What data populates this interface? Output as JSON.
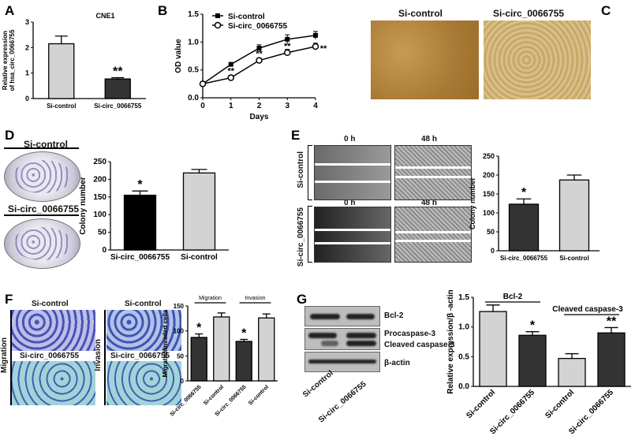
{
  "panels": {
    "A": "A",
    "B": "B",
    "C": "C",
    "D": "D",
    "E": "E",
    "F": "F",
    "G": "G"
  },
  "panel_c": {
    "left_title": "Si-control",
    "right_title": "Si-circ_0066755"
  },
  "panel_d": {
    "top_label": "Si-control",
    "bottom_label": "Si-circ_0066755"
  },
  "panel_e": {
    "time_0": "0 h",
    "time_48": "48 h",
    "row1": "Si-control",
    "row2": "Si-circ_0066755"
  },
  "panel_f": {
    "top_left": "Si-control",
    "top_right": "Si-control",
    "bottom_left": "Si-circ_0066755",
    "bottom_right": "Si-circ_0066755",
    "row_migration": "Migration",
    "row_invasion": "Invasion"
  },
  "panel_g": {
    "bands": [
      "Bcl-2",
      "Procaspase-3",
      "Cleaved caspase-3",
      "β-actin"
    ],
    "lanes": [
      "Si-control",
      "Si-circ_0066755"
    ]
  },
  "colors": {
    "light": "#d3d3d3",
    "dark": "#333333",
    "black": "#000000"
  },
  "chart_data": [
    {
      "id": "A",
      "type": "bar",
      "title": "CNE1",
      "ylabel": "Relative expression of hsa_circ_0066755",
      "ylim": [
        0,
        3
      ],
      "yticks": [
        "0",
        "1",
        "2",
        "3"
      ],
      "categories": [
        "Si-control",
        "Si-circ_0066755"
      ],
      "values": [
        2.15,
        0.77
      ],
      "errors": [
        0.3,
        0.05
      ],
      "fills": [
        "light",
        "dark"
      ],
      "annotations": [
        "",
        "**"
      ]
    },
    {
      "id": "B",
      "type": "line",
      "title": "",
      "xlabel": "Days",
      "ylabel": "OD value",
      "ylim": [
        0,
        1.5
      ],
      "yticks": [
        "0.0",
        "0.5",
        "1.0",
        "1.5"
      ],
      "x": [
        0,
        1,
        2,
        3,
        4
      ],
      "legend": "top-left",
      "series": [
        {
          "name": "Si-control",
          "marker": "square",
          "values": [
            0.25,
            0.6,
            0.89,
            1.05,
            1.12
          ],
          "errors": [
            0.02,
            0.02,
            0.06,
            0.08,
            0.07
          ]
        },
        {
          "name": "Si-circ_0066755",
          "marker": "circle",
          "values": [
            0.25,
            0.36,
            0.67,
            0.81,
            0.92
          ],
          "errors": [
            0.02,
            0.04,
            0.04,
            0.06,
            0.06
          ],
          "annotations": [
            "",
            "**",
            "**",
            "**",
            "**"
          ]
        }
      ]
    },
    {
      "id": "D",
      "type": "bar",
      "ylabel": "Colony number",
      "ylim": [
        0,
        250
      ],
      "yticks": [
        "0",
        "50",
        "100",
        "150",
        "200",
        "250"
      ],
      "categories": [
        "Si-circ_0066755",
        "Si-control"
      ],
      "values": [
        155,
        218
      ],
      "errors": [
        12,
        10
      ],
      "fills": [
        "black",
        "light"
      ],
      "annotations": [
        "*",
        ""
      ]
    },
    {
      "id": "E",
      "type": "bar",
      "ylabel": "Colony number",
      "ylim": [
        0,
        250
      ],
      "yticks": [
        "0",
        "50",
        "100",
        "150",
        "200",
        "250"
      ],
      "categories": [
        "Si-circ_0066755",
        "Si-control"
      ],
      "values": [
        123,
        187
      ],
      "errors": [
        14,
        13
      ],
      "fills": [
        "dark",
        "light"
      ],
      "annotations": [
        "*",
        ""
      ]
    },
    {
      "id": "F",
      "type": "bar",
      "ylabel": "Migrated/Invaded cells",
      "ylim": [
        0,
        150
      ],
      "yticks": [
        "0",
        "50",
        "100",
        "150"
      ],
      "categories": [
        "Si-circ_0066755",
        "Si-control",
        "Si-circ_0066755",
        "Si-control"
      ],
      "values": [
        87,
        128,
        79,
        126
      ],
      "errors": [
        7,
        8,
        4,
        8
      ],
      "fills": [
        "dark",
        "light",
        "dark",
        "light"
      ],
      "annotations": [
        "*",
        "",
        "*",
        ""
      ],
      "groups": [
        {
          "label": "Migration",
          "span": [
            0,
            1
          ]
        },
        {
          "label": "Invasion",
          "span": [
            2,
            3
          ]
        }
      ],
      "rotate": true
    },
    {
      "id": "G",
      "type": "bar",
      "ylabel": "Relative expression/β -actin",
      "ylim": [
        0,
        1.5
      ],
      "yticks": [
        "0.0",
        "0.5",
        "1.0",
        "1.5"
      ],
      "categories": [
        "Si-control",
        "Si-circ_0066755",
        "Si-control",
        "Si-circ_0066755"
      ],
      "values": [
        1.26,
        0.86,
        0.47,
        0.9
      ],
      "errors": [
        0.11,
        0.06,
        0.08,
        0.09
      ],
      "fills": [
        "light",
        "dark",
        "light",
        "dark"
      ],
      "annotations": [
        "",
        "*",
        "",
        "**"
      ],
      "groups": [
        {
          "label": "Bcl-2",
          "span": [
            0,
            1
          ]
        },
        {
          "label": "Cleaved caspase-3",
          "span": [
            2,
            3
          ]
        }
      ],
      "rotate": true
    }
  ]
}
